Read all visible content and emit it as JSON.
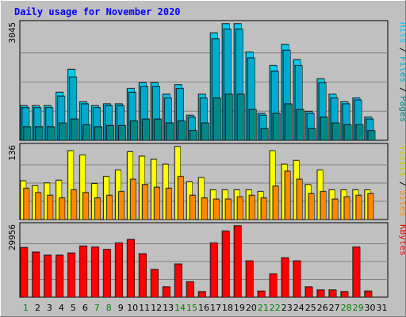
{
  "chart_data": {
    "type": "bar",
    "title": "Daily usage for November 2020",
    "categories": [
      "1",
      "2",
      "3",
      "4",
      "5",
      "6",
      "7",
      "8",
      "9",
      "10",
      "11",
      "12",
      "13",
      "14",
      "15",
      "16",
      "17",
      "18",
      "19",
      "20",
      "21",
      "22",
      "23",
      "24",
      "25",
      "26",
      "27",
      "28",
      "29",
      "30",
      "31"
    ],
    "weekend_days": [
      1,
      7,
      8,
      14,
      15,
      21,
      22,
      28,
      29
    ],
    "panels": [
      {
        "id": "requests",
        "ymax_label": "3045",
        "ymax": 3045,
        "labels": [
          "Hits",
          "Files",
          "Pages"
        ],
        "series": [
          {
            "name": "Hits",
            "color": "#00ccee",
            "values": [
              900,
              900,
              900,
              1250,
              1850,
              1000,
              900,
              950,
              950,
              1350,
              1500,
              1500,
              1200,
              1450,
              650,
              1200,
              2800,
              3045,
              3045,
              2300,
              700,
              1950,
              2500,
              2100,
              750,
              1600,
              1200,
              1000,
              1100,
              600,
              0
            ]
          },
          {
            "name": "Files",
            "color": "#00aacc",
            "values": [
              850,
              850,
              850,
              1150,
              1650,
              950,
              850,
              900,
              900,
              1250,
              1400,
              1400,
              1100,
              1350,
              600,
              1100,
              2650,
              2900,
              2900,
              2150,
              650,
              1800,
              2350,
              1950,
              700,
              1500,
              1100,
              950,
              1050,
              550,
              0
            ]
          },
          {
            "name": "Pages",
            "color": "#008888",
            "values": [
              350,
              350,
              350,
              450,
              550,
              400,
              350,
              380,
              380,
              500,
              550,
              550,
              450,
              500,
              250,
              450,
              1100,
              1200,
              1200,
              800,
              300,
              700,
              950,
              800,
              300,
              600,
              450,
              400,
              400,
              250,
              0
            ]
          }
        ]
      },
      {
        "id": "visitors",
        "ymax_label": "136",
        "ymax": 136,
        "labels": [
          "Visits",
          "Sites"
        ],
        "series": [
          {
            "name": "Visits",
            "color": "#ffff00",
            "values": [
              72,
              63,
              68,
              73,
              128,
              120,
              67,
              80,
              92,
              126,
              118,
              112,
              103,
              136,
              70,
              78,
              55,
              55,
              55,
              55,
              52,
              128,
              103,
              110,
              65,
              92,
              55,
              55,
              55,
              55,
              0
            ]
          },
          {
            "name": "Sites",
            "color": "#ff8800",
            "values": [
              58,
              50,
              45,
              40,
              55,
              50,
              40,
              45,
              52,
              75,
              65,
              60,
              58,
              80,
              45,
              40,
              38,
              38,
              42,
              45,
              40,
              62,
              90,
              75,
              48,
              52,
              38,
              42,
              45,
              48,
              0
            ]
          }
        ]
      },
      {
        "id": "volume",
        "ymax_label": "29956",
        "ymax": 29956,
        "labels": [
          "KBytes"
        ],
        "series": [
          {
            "name": "KBytes",
            "color": "#ff0000",
            "values": [
              20800,
              18900,
              17600,
              17600,
              18500,
              21400,
              21000,
              20000,
              22700,
              24200,
              18200,
              11600,
              4300,
              13900,
              6400,
              2300,
              22700,
              27700,
              29956,
              15200,
              2500,
              9700,
              16500,
              15200,
              4300,
              3000,
              3000,
              2300,
              21000,
              2500,
              0
            ]
          }
        ]
      }
    ]
  }
}
